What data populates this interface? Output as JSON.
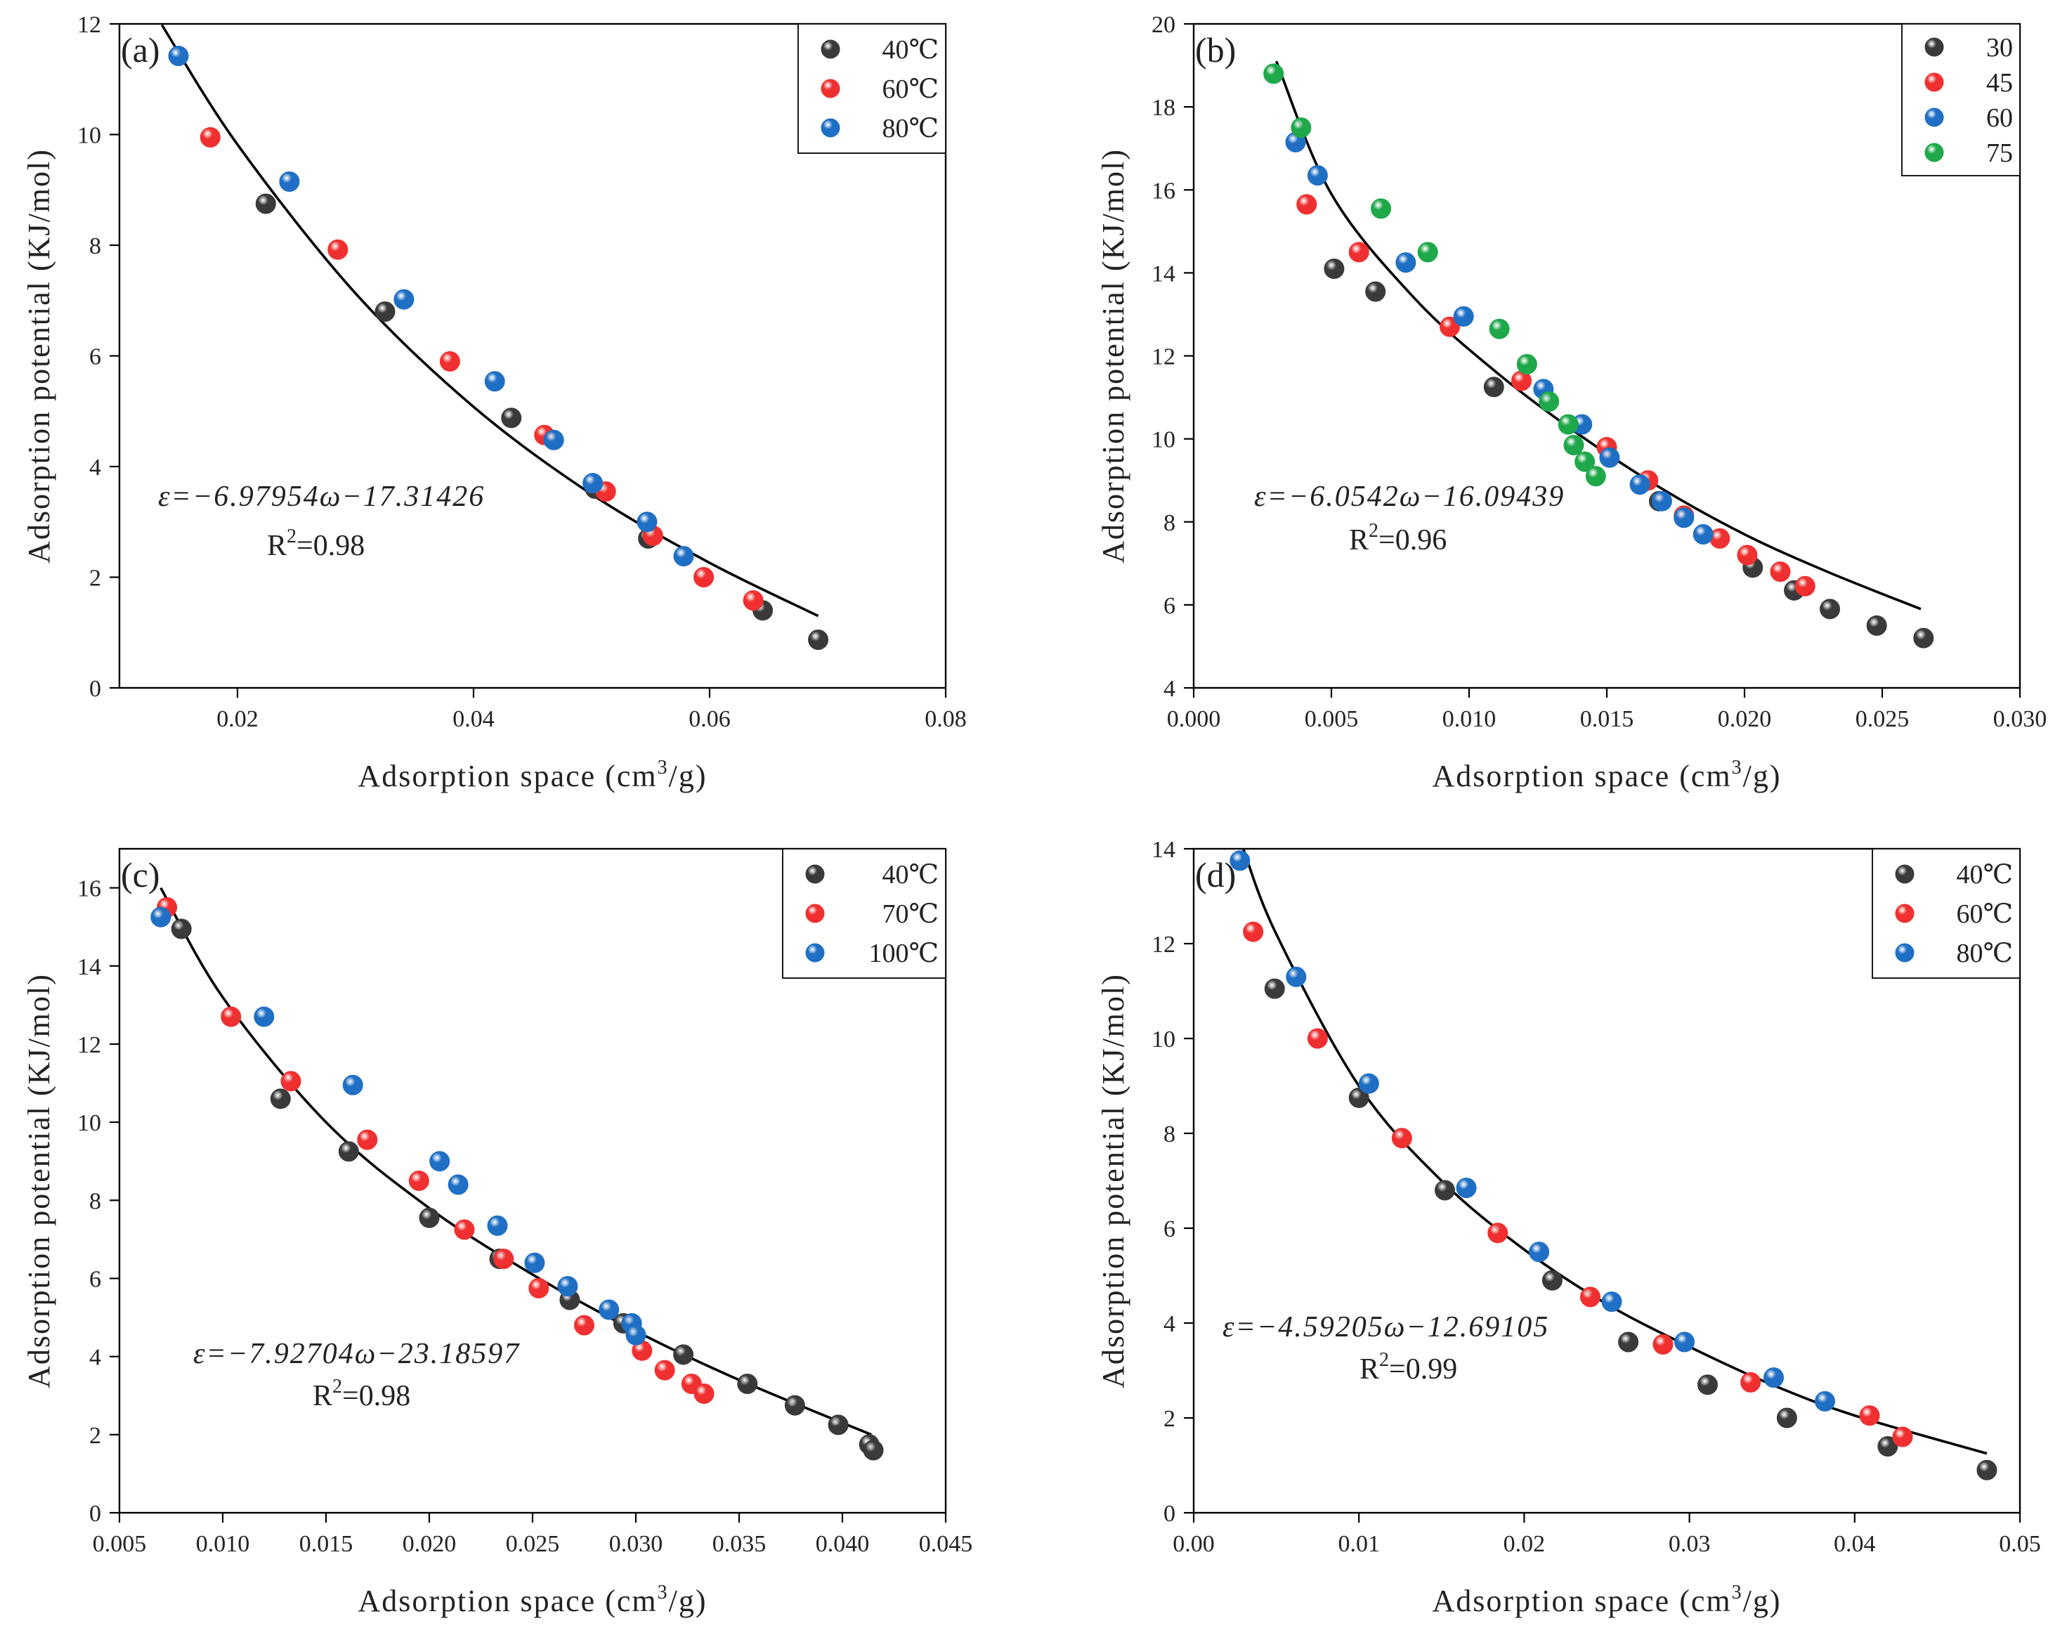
{
  "figure": {
    "xlabel_prefix": "Adsorption space (cm",
    "xlabel_sup": "3",
    "xlabel_suffix": "/g)",
    "ylabel": "Adsorption potential (KJ/mol)"
  },
  "colors": {
    "dark": "#3a3a3a",
    "red": "#f03030",
    "blue": "#1f6fc4",
    "green": "#1fa84a"
  },
  "chart_data": [
    {
      "panel_label": "(a)",
      "type": "scatter",
      "xlim": [
        0.01,
        0.08
      ],
      "ylim": [
        0,
        12
      ],
      "xticks": [
        "0.02",
        "0.04",
        "0.06",
        "0.08"
      ],
      "yticks": [
        "0",
        "2",
        "4",
        "6",
        "8",
        "10",
        "12"
      ],
      "xtick_values": [
        0.02,
        0.04,
        0.06,
        0.08
      ],
      "ytick_values": [
        0,
        2,
        4,
        6,
        8,
        10,
        12
      ],
      "equation": "ε=−6.97954ω−17.31426",
      "r2_prefix": "R",
      "r2_sup": "2",
      "r2_value": "=0.98",
      "legend_position": "top-right",
      "fit": {
        "x": [
          0.0136,
          0.02,
          0.03,
          0.04,
          0.05,
          0.06,
          0.0692
        ],
        "y": [
          11.98,
          9.82,
          7.13,
          5.08,
          3.5,
          2.26,
          1.3
        ]
      },
      "series": [
        {
          "name": "40℃",
          "color": "dark",
          "points": [
            [
              0.0224,
              8.75
            ],
            [
              0.0325,
              6.8
            ],
            [
              0.0432,
              4.88
            ],
            [
              0.0503,
              3.6
            ],
            [
              0.0548,
              2.7
            ],
            [
              0.0645,
              1.4
            ],
            [
              0.0692,
              0.87
            ]
          ]
        },
        {
          "name": "60℃",
          "color": "red",
          "points": [
            [
              0.0177,
              9.95
            ],
            [
              0.0285,
              7.92
            ],
            [
              0.038,
              5.9
            ],
            [
              0.046,
              4.57
            ],
            [
              0.0512,
              3.55
            ],
            [
              0.0552,
              2.75
            ],
            [
              0.0595,
              2.0
            ],
            [
              0.0637,
              1.58
            ]
          ]
        },
        {
          "name": "80℃",
          "color": "blue",
          "points": [
            [
              0.015,
              11.42
            ],
            [
              0.0244,
              9.15
            ],
            [
              0.0341,
              7.02
            ],
            [
              0.0418,
              5.54
            ],
            [
              0.0468,
              4.48
            ],
            [
              0.0501,
              3.7
            ],
            [
              0.0547,
              3.0
            ],
            [
              0.0578,
              2.38
            ]
          ]
        }
      ]
    },
    {
      "panel_label": "(b)",
      "type": "scatter",
      "xlim": [
        0.0,
        0.03
      ],
      "ylim": [
        4,
        20
      ],
      "xticks": [
        "0.000",
        "0.005",
        "0.010",
        "0.015",
        "0.020",
        "0.025",
        "0.030"
      ],
      "yticks": [
        "4",
        "6",
        "8",
        "10",
        "12",
        "14",
        "16",
        "18",
        "20"
      ],
      "xtick_values": [
        0.0,
        0.005,
        0.01,
        0.015,
        0.02,
        0.025,
        0.03
      ],
      "ytick_values": [
        4,
        6,
        8,
        10,
        12,
        14,
        16,
        18,
        20
      ],
      "equation": "ε=−6.0542ω−16.09439",
      "r2_prefix": "R",
      "r2_sup": "2",
      "r2_value": "=0.96",
      "legend_position": "top-right",
      "fit": {
        "x": [
          0.003,
          0.005,
          0.008,
          0.011,
          0.014,
          0.017,
          0.02,
          0.023,
          0.0264
        ],
        "y": [
          19.1,
          15.9,
          13.4,
          11.6,
          10.1,
          8.8,
          7.7,
          6.8,
          5.9
        ]
      },
      "series": [
        {
          "name": "30",
          "color": "dark",
          "points": [
            [
              0.0051,
              14.1
            ],
            [
              0.0066,
              13.55
            ],
            [
              0.0109,
              11.25
            ],
            [
              0.0169,
              8.5
            ],
            [
              0.0203,
              6.9
            ],
            [
              0.0218,
              6.35
            ],
            [
              0.0231,
              5.9
            ],
            [
              0.0248,
              5.5
            ],
            [
              0.0265,
              5.2
            ]
          ]
        },
        {
          "name": "45",
          "color": "red",
          "points": [
            [
              0.0041,
              15.65
            ],
            [
              0.006,
              14.5
            ],
            [
              0.0093,
              12.7
            ],
            [
              0.0119,
              11.4
            ],
            [
              0.015,
              9.8
            ],
            [
              0.0165,
              9.0
            ],
            [
              0.0178,
              8.15
            ],
            [
              0.0191,
              7.6
            ],
            [
              0.0201,
              7.2
            ],
            [
              0.0213,
              6.8
            ],
            [
              0.0222,
              6.45
            ]
          ]
        },
        {
          "name": "60",
          "color": "blue",
          "points": [
            [
              0.0037,
              17.15
            ],
            [
              0.0045,
              16.35
            ],
            [
              0.0077,
              14.25
            ],
            [
              0.0098,
              12.95
            ],
            [
              0.0127,
              11.2
            ],
            [
              0.0141,
              10.35
            ],
            [
              0.0151,
              9.55
            ],
            [
              0.0162,
              8.9
            ],
            [
              0.017,
              8.5
            ],
            [
              0.0178,
              8.1
            ],
            [
              0.0185,
              7.7
            ]
          ]
        },
        {
          "name": "75",
          "color": "green",
          "points": [
            [
              0.0029,
              18.8
            ],
            [
              0.0039,
              17.5
            ],
            [
              0.0068,
              15.55
            ],
            [
              0.0085,
              14.5
            ],
            [
              0.0111,
              12.65
            ],
            [
              0.0121,
              11.8
            ],
            [
              0.0129,
              10.9
            ],
            [
              0.0136,
              10.35
            ],
            [
              0.0138,
              9.85
            ],
            [
              0.0142,
              9.45
            ],
            [
              0.0146,
              9.1
            ]
          ]
        }
      ]
    },
    {
      "panel_label": "(c)",
      "type": "scatter",
      "xlim": [
        0.005,
        0.045
      ],
      "ylim": [
        0,
        17
      ],
      "xticks": [
        "0.005",
        "0.010",
        "0.015",
        "0.020",
        "0.025",
        "0.030",
        "0.035",
        "0.040",
        "0.045"
      ],
      "yticks": [
        "0",
        "2",
        "4",
        "6",
        "8",
        "10",
        "12",
        "14",
        "16"
      ],
      "xtick_values": [
        0.005,
        0.01,
        0.015,
        0.02,
        0.025,
        0.03,
        0.035,
        0.04,
        0.045
      ],
      "ytick_values": [
        0,
        2,
        4,
        6,
        8,
        10,
        12,
        14,
        16
      ],
      "equation": "ε=−7.92704ω−23.18597",
      "r2_prefix": "R",
      "r2_sup": "2",
      "r2_value": "=0.98",
      "legend_position": "top-right",
      "fit": {
        "x": [
          0.007,
          0.01,
          0.015,
          0.02,
          0.025,
          0.03,
          0.035,
          0.0414
        ],
        "y": [
          16.0,
          13.2,
          10.0,
          7.8,
          6.1,
          4.65,
          3.4,
          2.0
        ]
      },
      "series": [
        {
          "name": "40℃",
          "color": "dark",
          "points": [
            [
              0.008,
              14.95
            ],
            [
              0.0128,
              10.6
            ],
            [
              0.0161,
              9.25
            ],
            [
              0.02,
              7.55
            ],
            [
              0.0234,
              6.5
            ],
            [
              0.0268,
              5.45
            ],
            [
              0.0294,
              4.85
            ],
            [
              0.0323,
              4.05
            ],
            [
              0.0354,
              3.3
            ],
            [
              0.0377,
              2.75
            ],
            [
              0.0398,
              2.25
            ],
            [
              0.0413,
              1.75
            ],
            [
              0.0415,
              1.6
            ]
          ]
        },
        {
          "name": "70℃",
          "color": "red",
          "points": [
            [
              0.0073,
              15.5
            ],
            [
              0.0104,
              12.7
            ],
            [
              0.0133,
              11.05
            ],
            [
              0.017,
              9.55
            ],
            [
              0.0195,
              8.5
            ],
            [
              0.0217,
              7.25
            ],
            [
              0.0236,
              6.5
            ],
            [
              0.0253,
              5.75
            ],
            [
              0.0275,
              4.8
            ],
            [
              0.0303,
              4.15
            ],
            [
              0.0314,
              3.65
            ],
            [
              0.0327,
              3.3
            ],
            [
              0.0333,
              3.05
            ]
          ]
        },
        {
          "name": "100℃",
          "color": "blue",
          "points": [
            [
              0.007,
              15.25
            ],
            [
              0.012,
              12.7
            ],
            [
              0.0163,
              10.95
            ],
            [
              0.0205,
              9.0
            ],
            [
              0.0214,
              8.4
            ],
            [
              0.0233,
              7.35
            ],
            [
              0.0251,
              6.4
            ],
            [
              0.0267,
              5.8
            ],
            [
              0.0287,
              5.2
            ],
            [
              0.0298,
              4.85
            ],
            [
              0.03,
              4.55
            ]
          ]
        }
      ]
    },
    {
      "panel_label": "(d)",
      "type": "scatter",
      "xlim": [
        0.0,
        0.05
      ],
      "ylim": [
        0,
        14
      ],
      "xticks": [
        "0.00",
        "0.01",
        "0.02",
        "0.03",
        "0.04",
        "0.05"
      ],
      "yticks": [
        "0",
        "2",
        "4",
        "6",
        "8",
        "10",
        "12",
        "14"
      ],
      "xtick_values": [
        0.0,
        0.01,
        0.02,
        0.03,
        0.04,
        0.05
      ],
      "ytick_values": [
        0,
        2,
        4,
        6,
        8,
        10,
        12,
        14
      ],
      "equation": "ε=−4.59205ω−12.69105",
      "r2_prefix": "R",
      "r2_sup": "2",
      "r2_value": "=0.99",
      "legend_position": "top-right",
      "fit": {
        "x": [
          0.003,
          0.005,
          0.01,
          0.015,
          0.02,
          0.025,
          0.03,
          0.035,
          0.04,
          0.048
        ],
        "y": [
          14.0,
          12.2,
          9.0,
          7.0,
          5.55,
          4.4,
          3.5,
          2.7,
          2.05,
          1.25
        ]
      },
      "series": [
        {
          "name": "40℃",
          "color": "dark",
          "points": [
            [
              0.0049,
              11.05
            ],
            [
              0.01,
              8.75
            ],
            [
              0.0152,
              6.8
            ],
            [
              0.0217,
              4.9
            ],
            [
              0.0263,
              3.6
            ],
            [
              0.0311,
              2.7
            ],
            [
              0.0359,
              2.0
            ],
            [
              0.042,
              1.4
            ],
            [
              0.048,
              0.9
            ]
          ]
        },
        {
          "name": "60℃",
          "color": "red",
          "points": [
            [
              0.0036,
              12.25
            ],
            [
              0.0075,
              10.0
            ],
            [
              0.0126,
              7.9
            ],
            [
              0.0184,
              5.9
            ],
            [
              0.024,
              4.55
            ],
            [
              0.0284,
              3.55
            ],
            [
              0.0337,
              2.75
            ],
            [
              0.0409,
              2.05
            ],
            [
              0.0429,
              1.6
            ]
          ]
        },
        {
          "name": "80℃",
          "color": "blue",
          "points": [
            [
              0.0028,
              13.75
            ],
            [
              0.0062,
              11.3
            ],
            [
              0.0106,
              9.05
            ],
            [
              0.0165,
              6.85
            ],
            [
              0.0209,
              5.5
            ],
            [
              0.0253,
              4.45
            ],
            [
              0.0297,
              3.6
            ],
            [
              0.0351,
              2.85
            ],
            [
              0.0382,
              2.35
            ]
          ]
        }
      ]
    }
  ]
}
